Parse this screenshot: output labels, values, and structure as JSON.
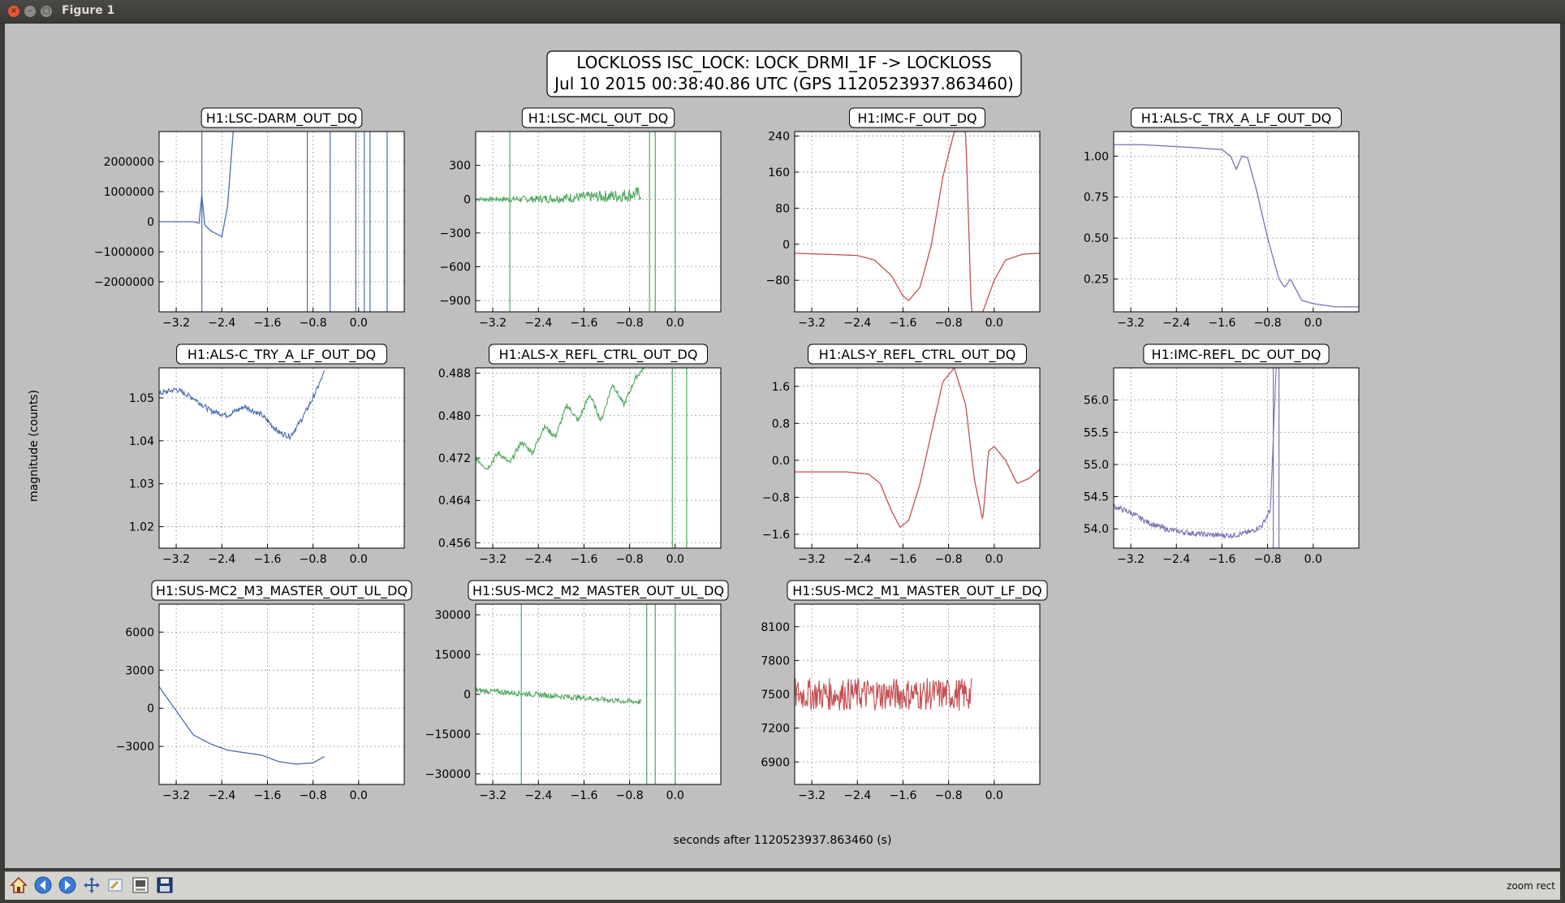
{
  "window": {
    "title": "Figure 1"
  },
  "figure": {
    "suptitle_line1": "LOCKLOSS ISC_LOCK: LOCK_DRMI_1F -> LOCKLOSS",
    "suptitle_line2": "Jul 10 2015 00:38:40.86 UTC (GPS 1120523937.863460)",
    "ylabel": "magnitude (counts)",
    "xlabel": "seconds after 1120523937.863460 (s)"
  },
  "toolbar": {
    "buttons": [
      "home-icon",
      "back-arrow-icon",
      "forward-arrow-icon",
      "pan-icon",
      "zoom-icon",
      "subplots-icon",
      "save-icon"
    ],
    "status": "zoom rect"
  },
  "colors": {
    "blue": "#4a6eb0",
    "green": "#50a860",
    "red": "#c44e52",
    "purple": "#7b6fb5"
  },
  "chart_data": [
    {
      "type": "line",
      "title": "H1:LSC-DARM_OUT_DQ",
      "color": "blue",
      "xlim": [
        -3.5,
        0.8
      ],
      "ylim": [
        -3000000,
        3000000
      ],
      "xticks": [
        "−3.2",
        "−2.4",
        "−1.6",
        "−0.8",
        "0.0"
      ],
      "xtick_values": [
        -3.2,
        -2.4,
        -1.6,
        -0.8,
        0.0
      ],
      "yticks": [
        "−2000000",
        "−1000000",
        "0",
        "1000000",
        "2000000"
      ],
      "ytick_values": [
        -2000000,
        -1000000,
        0,
        1000000,
        2000000
      ],
      "x": [
        -3.5,
        -2.9,
        -2.8,
        -2.75,
        -2.7,
        -2.6,
        -2.5,
        -2.4,
        -2.3,
        -2.2
      ],
      "y": [
        0,
        0,
        -50000,
        900000,
        -100000,
        -300000,
        -400000,
        -500000,
        500000,
        3000000
      ]
    },
    {
      "type": "line",
      "title": "H1:LSC-MCL_OUT_DQ",
      "color": "green",
      "xlim": [
        -3.5,
        0.8
      ],
      "ylim": [
        -1000,
        600
      ],
      "xticks": [
        "−3.2",
        "−2.4",
        "−1.6",
        "−0.8",
        "0.0"
      ],
      "xtick_values": [
        -3.2,
        -2.4,
        -1.6,
        -0.8,
        0.0
      ],
      "yticks": [
        "−900",
        "−600",
        "−300",
        "0",
        "300"
      ],
      "ytick_values": [
        -900,
        -600,
        -300,
        0,
        300
      ],
      "x": [
        -3.5,
        -3.0,
        -2.5,
        -2.0,
        -1.5,
        -1.0,
        -0.6
      ],
      "y": [
        0,
        0,
        0,
        10,
        20,
        30,
        50
      ]
    },
    {
      "type": "line",
      "title": "H1:IMC-F_OUT_DQ",
      "color": "red",
      "xlim": [
        -3.5,
        0.8
      ],
      "ylim": [
        -150,
        250
      ],
      "xticks": [
        "−3.2",
        "−2.4",
        "−1.6",
        "−0.8",
        "0.0"
      ],
      "xtick_values": [
        -3.2,
        -2.4,
        -1.6,
        -0.8,
        0.0
      ],
      "yticks": [
        "−80",
        "0",
        "80",
        "160",
        "240"
      ],
      "ytick_values": [
        -80,
        0,
        80,
        160,
        240
      ],
      "x": [
        -3.5,
        -2.8,
        -2.4,
        -2.1,
        -1.8,
        -1.6,
        -1.5,
        -1.3,
        -1.1,
        -0.9,
        -0.7,
        -0.5,
        -0.4,
        -0.2,
        0.0,
        0.2,
        0.5,
        0.8
      ],
      "y": [
        -20,
        -23,
        -25,
        -35,
        -70,
        -115,
        -125,
        -95,
        0,
        150,
        250,
        250,
        -150,
        -150,
        -80,
        -35,
        -22,
        -20
      ]
    },
    {
      "type": "line",
      "title": "H1:ALS-C_TRX_A_LF_OUT_DQ",
      "color": "purple",
      "xlim": [
        -3.5,
        0.8
      ],
      "ylim": [
        0.05,
        1.15
      ],
      "xticks": [
        "−3.2",
        "−2.4",
        "−1.6",
        "−0.8",
        "0.0"
      ],
      "xtick_values": [
        -3.2,
        -2.4,
        -1.6,
        -0.8,
        0.0
      ],
      "yticks": [
        "0.25",
        "0.50",
        "0.75",
        "1.00"
      ],
      "ytick_values": [
        0.25,
        0.5,
        0.75,
        1.0
      ],
      "x": [
        -3.5,
        -3.0,
        -2.5,
        -2.0,
        -1.6,
        -1.45,
        -1.35,
        -1.25,
        -1.15,
        -1.0,
        -0.8,
        -0.6,
        -0.5,
        -0.4,
        -0.2,
        0.0,
        0.4,
        0.8
      ],
      "y": [
        1.07,
        1.07,
        1.06,
        1.05,
        1.04,
        1.0,
        0.92,
        1.0,
        0.99,
        0.8,
        0.5,
        0.25,
        0.2,
        0.25,
        0.12,
        0.1,
        0.08,
        0.08
      ]
    },
    {
      "type": "line",
      "title": "H1:ALS-C_TRY_A_LF_OUT_DQ",
      "color": "blue",
      "xlim": [
        -3.5,
        0.8
      ],
      "ylim": [
        1.015,
        1.057
      ],
      "xticks": [
        "−3.2",
        "−2.4",
        "−1.6",
        "−0.8",
        "0.0"
      ],
      "xtick_values": [
        -3.2,
        -2.4,
        -1.6,
        -0.8,
        0.0
      ],
      "yticks": [
        "1.02",
        "1.03",
        "1.04",
        "1.05"
      ],
      "ytick_values": [
        1.02,
        1.03,
        1.04,
        1.05
      ],
      "x": [
        -3.5,
        -3.2,
        -2.9,
        -2.6,
        -2.3,
        -2.0,
        -1.7,
        -1.4,
        -1.2,
        -1.0,
        -0.8,
        -0.6
      ],
      "y": [
        1.051,
        1.052,
        1.05,
        1.047,
        1.046,
        1.048,
        1.046,
        1.042,
        1.041,
        1.045,
        1.05,
        1.056
      ]
    },
    {
      "type": "line",
      "title": "H1:ALS-X_REFL_CTRL_OUT_DQ",
      "color": "green",
      "xlim": [
        -3.5,
        0.8
      ],
      "ylim": [
        0.455,
        0.489
      ],
      "xticks": [
        "−3.2",
        "−2.4",
        "−1.6",
        "−0.8",
        "0.0"
      ],
      "xtick_values": [
        -3.2,
        -2.4,
        -1.6,
        -0.8,
        0.0
      ],
      "yticks": [
        "0.456",
        "0.464",
        "0.472",
        "0.480",
        "0.488"
      ],
      "ytick_values": [
        0.456,
        0.464,
        0.472,
        0.48,
        0.488
      ],
      "x": [
        -3.5,
        -3.3,
        -3.1,
        -2.9,
        -2.7,
        -2.5,
        -2.3,
        -2.1,
        -1.9,
        -1.7,
        -1.5,
        -1.3,
        -1.1,
        -0.9,
        -0.7,
        -0.55
      ],
      "y": [
        0.472,
        0.47,
        0.473,
        0.471,
        0.475,
        0.473,
        0.478,
        0.476,
        0.482,
        0.479,
        0.484,
        0.479,
        0.486,
        0.482,
        0.487,
        0.489
      ]
    },
    {
      "type": "line",
      "title": "H1:ALS-Y_REFL_CTRL_OUT_DQ",
      "color": "red",
      "xlim": [
        -3.5,
        0.8
      ],
      "ylim": [
        -1.9,
        2.0
      ],
      "xticks": [
        "−3.2",
        "−2.4",
        "−1.6",
        "−0.8",
        "0.0"
      ],
      "xtick_values": [
        -3.2,
        -2.4,
        -1.6,
        -0.8,
        0.0
      ],
      "yticks": [
        "−1.6",
        "−0.8",
        "0.0",
        "0.8",
        "1.6"
      ],
      "ytick_values": [
        -1.6,
        -0.8,
        0,
        0.8,
        1.6
      ],
      "x": [
        -3.5,
        -2.6,
        -2.2,
        -2.0,
        -1.8,
        -1.65,
        -1.5,
        -1.3,
        -1.1,
        -0.9,
        -0.7,
        -0.5,
        -0.35,
        -0.2,
        -0.1,
        0.0,
        0.2,
        0.4,
        0.6,
        0.8
      ],
      "y": [
        -0.25,
        -0.25,
        -0.3,
        -0.5,
        -1.1,
        -1.45,
        -1.3,
        -0.5,
        0.6,
        1.7,
        2.0,
        1.2,
        -0.4,
        -1.3,
        0.2,
        0.3,
        0.0,
        -0.5,
        -0.4,
        -0.2
      ]
    },
    {
      "type": "line",
      "title": "H1:IMC-REFL_DC_OUT_DQ",
      "color": "purple",
      "xlim": [
        -3.5,
        0.8
      ],
      "ylim": [
        53.7,
        56.5
      ],
      "xticks": [
        "−3.2",
        "−2.4",
        "−1.6",
        "−0.8",
        "0.0"
      ],
      "xtick_values": [
        -3.2,
        -2.4,
        -1.6,
        -0.8,
        0.0
      ],
      "yticks": [
        "54.0",
        "54.5",
        "55.0",
        "55.5",
        "56.0"
      ],
      "ytick_values": [
        54,
        54.5,
        55,
        55.5,
        56
      ],
      "x": [
        -3.5,
        -3.2,
        -2.9,
        -2.6,
        -2.3,
        -2.0,
        -1.7,
        -1.4,
        -1.1,
        -0.9,
        -0.75,
        -0.65
      ],
      "y": [
        54.35,
        54.25,
        54.1,
        54.0,
        53.95,
        53.92,
        53.9,
        53.9,
        53.95,
        54.05,
        54.3,
        56.5
      ]
    },
    {
      "type": "line",
      "title": "H1:SUS-MC2_M3_MASTER_OUT_UL_DQ",
      "color": "blue",
      "xlim": [
        -3.5,
        0.8
      ],
      "ylim": [
        -6000,
        8200
      ],
      "xticks": [
        "−3.2",
        "−2.4",
        "−1.6",
        "−0.8",
        "0.0"
      ],
      "xtick_values": [
        -3.2,
        -2.4,
        -1.6,
        -0.8,
        0.0
      ],
      "yticks": [
        "−3000",
        "0",
        "3000",
        "6000"
      ],
      "ytick_values": [
        -3000,
        0,
        3000,
        6000
      ],
      "x": [
        -3.5,
        -3.2,
        -2.9,
        -2.6,
        -2.3,
        -2.0,
        -1.7,
        -1.4,
        -1.1,
        -0.8,
        -0.6
      ],
      "y": [
        1700,
        -200,
        -2100,
        -2800,
        -3300,
        -3500,
        -3700,
        -4200,
        -4400,
        -4300,
        -3800
      ]
    },
    {
      "type": "line",
      "title": "H1:SUS-MC2_M2_MASTER_OUT_UL_DQ",
      "color": "green",
      "xlim": [
        -3.5,
        0.8
      ],
      "ylim": [
        -34000,
        34000
      ],
      "xticks": [
        "−3.2",
        "−2.4",
        "−1.6",
        "−0.8",
        "0.0"
      ],
      "xtick_values": [
        -3.2,
        -2.4,
        -1.6,
        -0.8,
        0.0
      ],
      "yticks": [
        "−30000",
        "−15000",
        "0",
        "15000",
        "30000"
      ],
      "ytick_values": [
        -30000,
        -15000,
        0,
        15000,
        30000
      ],
      "x": [
        -3.5,
        -3.0,
        -2.5,
        -2.0,
        -1.5,
        -1.0,
        -0.6
      ],
      "y": [
        1500,
        800,
        0,
        -800,
        -1500,
        -2500,
        -2800
      ]
    },
    {
      "type": "line",
      "title": "H1:SUS-MC2_M1_MASTER_OUT_LF_DQ",
      "color": "red",
      "xlim": [
        -3.5,
        0.8
      ],
      "ylim": [
        6700,
        8300
      ],
      "xticks": [
        "−3.2",
        "−2.4",
        "−1.6",
        "−0.8",
        "0.0"
      ],
      "xtick_values": [
        -3.2,
        -2.4,
        -1.6,
        -0.8,
        0.0
      ],
      "yticks": [
        "6900",
        "7200",
        "7500",
        "7800",
        "8100"
      ],
      "ytick_values": [
        6900,
        7200,
        7500,
        7800,
        8100
      ],
      "x": [
        -3.5,
        -0.4
      ],
      "y": [
        7500,
        7500
      ]
    }
  ]
}
